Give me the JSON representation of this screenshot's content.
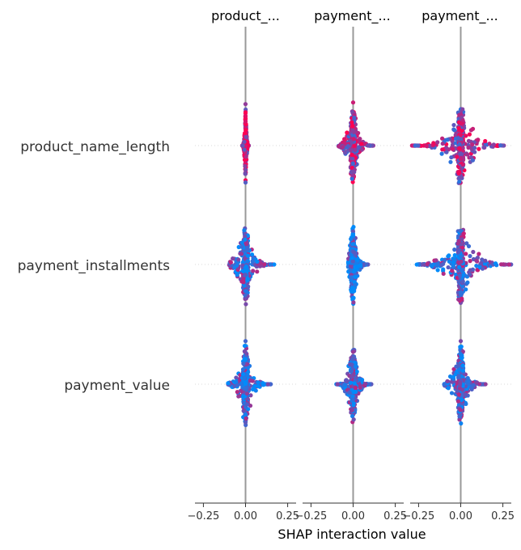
{
  "chart_data": {
    "type": "scatter",
    "subtype": "shap-interaction-beeswarm",
    "xlabel": "SHAP interaction value",
    "column_titles": [
      "product_...",
      "payment_...",
      "payment_..."
    ],
    "features": [
      "product_name_length",
      "payment_installments",
      "payment_value"
    ],
    "xlim": [
      -0.3,
      0.3
    ],
    "xticks": [
      -0.25,
      0.0,
      0.25
    ],
    "xtick_labels": [
      "−0.25",
      "0.00",
      "0.25"
    ],
    "grid": false,
    "colors": {
      "low": "#008bfb",
      "high": "#ff0052",
      "zero_line": "#999999",
      "axis": "#333333"
    },
    "panels": [
      {
        "column": 0,
        "feature": "product_name_length",
        "min": -0.02,
        "max": 0.02,
        "vertical_spread": "wide",
        "color_mix": 0.75
      },
      {
        "column": 0,
        "feature": "payment_installments",
        "min": -0.1,
        "max": 0.17,
        "vertical_spread": "wide",
        "color_mix": 0.3
      },
      {
        "column": 0,
        "feature": "payment_value",
        "min": -0.11,
        "max": 0.15,
        "vertical_spread": "wide",
        "color_mix": 0.25
      },
      {
        "column": 1,
        "feature": "product_name_length",
        "min": -0.09,
        "max": 0.12,
        "vertical_spread": "wide",
        "color_mix": 0.6
      },
      {
        "column": 1,
        "feature": "payment_installments",
        "min": -0.03,
        "max": 0.09,
        "vertical_spread": "wide",
        "color_mix": 0.15
      },
      {
        "column": 1,
        "feature": "payment_value",
        "min": -0.1,
        "max": 0.11,
        "vertical_spread": "wide",
        "color_mix": 0.3
      },
      {
        "column": 2,
        "feature": "product_name_length",
        "min": -0.29,
        "max": 0.26,
        "vertical_spread": "wide",
        "color_mix": 0.6
      },
      {
        "column": 2,
        "feature": "payment_installments",
        "min": -0.27,
        "max": 0.3,
        "vertical_spread": "wide",
        "color_mix": 0.35
      },
      {
        "column": 2,
        "feature": "payment_value",
        "min": -0.1,
        "max": 0.15,
        "vertical_spread": "wide",
        "color_mix": 0.3
      }
    ]
  }
}
